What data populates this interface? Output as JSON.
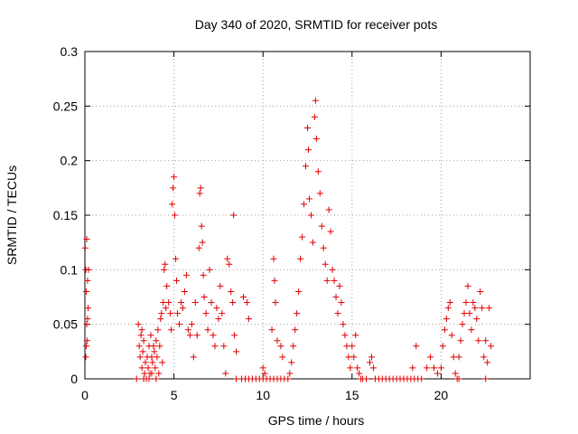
{
  "chart_data": {
    "type": "scatter",
    "title": "Day 340 of 2020, SRMTID for receiver pots",
    "xlabel": "GPS time / hours",
    "ylabel": "SRMTID / TECUs",
    "xlim": [
      0,
      25
    ],
    "ylim": [
      0,
      0.3
    ],
    "xticks": [
      0,
      5,
      10,
      15,
      20
    ],
    "yticks": [
      0,
      0.05,
      0.1,
      0.15,
      0.2,
      0.25,
      0.3
    ],
    "ytick_labels": [
      "0",
      "0.05",
      "0.1",
      "0.15",
      "0.2",
      "0.25",
      "0.3"
    ],
    "grid": true,
    "marker": "+",
    "marker_color": "#e00000",
    "series": [
      {
        "name": "SRMTID",
        "points": [
          [
            0.02,
            0.12
          ],
          [
            0.05,
            0.1
          ],
          [
            0.08,
            0.08
          ],
          [
            0.1,
            0.05
          ],
          [
            0.12,
            0.035
          ],
          [
            0.15,
            0.09
          ],
          [
            0.18,
            0.065
          ],
          [
            0.2,
            0.1
          ],
          [
            0.05,
            0.02
          ],
          [
            0.1,
            0.128
          ],
          [
            0.15,
            0.055
          ],
          [
            0.08,
            0.03
          ],
          [
            2.9,
            0.0
          ],
          [
            3.0,
            0.05
          ],
          [
            3.05,
            0.03
          ],
          [
            3.1,
            0.02
          ],
          [
            3.15,
            0.04
          ],
          [
            3.2,
            0.01
          ],
          [
            3.25,
            0.025
          ],
          [
            3.3,
            0.035
          ],
          [
            3.35,
            0.005
          ],
          [
            3.4,
            0.015
          ],
          [
            3.5,
            0.02
          ],
          [
            3.55,
            0.01
          ],
          [
            3.6,
            0.03
          ],
          [
            3.65,
            0.005
          ],
          [
            3.7,
            0.04
          ],
          [
            3.75,
            0.02
          ],
          [
            3.8,
            0.015
          ],
          [
            3.85,
            0.03
          ],
          [
            3.9,
            0.025
          ],
          [
            3.95,
            0.01
          ],
          [
            4.0,
            0.035
          ],
          [
            4.05,
            0.02
          ],
          [
            4.1,
            0.045
          ],
          [
            4.15,
            0.005
          ],
          [
            4.2,
            0.03
          ],
          [
            4.25,
            0.055
          ],
          [
            4.3,
            0.06
          ],
          [
            4.35,
            0.015
          ],
          [
            4.4,
            0.07
          ],
          [
            4.45,
            0.1
          ],
          [
            4.5,
            0.105
          ],
          [
            4.55,
            0.065
          ],
          [
            4.6,
            0.085
          ],
          [
            4.7,
            0.07
          ],
          [
            4.8,
            0.06
          ],
          [
            4.85,
            0.045
          ],
          [
            4.9,
            0.16
          ],
          [
            4.95,
            0.175
          ],
          [
            5.0,
            0.185
          ],
          [
            5.05,
            0.15
          ],
          [
            5.1,
            0.11
          ],
          [
            5.15,
            0.09
          ],
          [
            5.2,
            0.06
          ],
          [
            5.3,
            0.05
          ],
          [
            5.4,
            0.07
          ],
          [
            5.5,
            0.065
          ],
          [
            5.6,
            0.08
          ],
          [
            5.7,
            0.095
          ],
          [
            5.8,
            0.045
          ],
          [
            5.9,
            0.04
          ],
          [
            3.3,
            0.0
          ],
          [
            3.6,
            0.0
          ],
          [
            4.0,
            0.0
          ],
          [
            3.2,
            0.045
          ],
          [
            3.45,
            0.0
          ],
          [
            3.75,
            0.005
          ],
          [
            6.0,
            0.05
          ],
          [
            6.1,
            0.02
          ],
          [
            6.2,
            0.07
          ],
          [
            6.3,
            0.04
          ],
          [
            6.4,
            0.12
          ],
          [
            6.45,
            0.17
          ],
          [
            6.5,
            0.175
          ],
          [
            6.55,
            0.14
          ],
          [
            6.6,
            0.125
          ],
          [
            6.65,
            0.095
          ],
          [
            6.7,
            0.075
          ],
          [
            6.8,
            0.06
          ],
          [
            6.9,
            0.045
          ],
          [
            7.0,
            0.1
          ],
          [
            7.1,
            0.07
          ],
          [
            7.2,
            0.04
          ],
          [
            7.3,
            0.03
          ],
          [
            7.4,
            0.065
          ],
          [
            7.5,
            0.055
          ],
          [
            7.6,
            0.085
          ],
          [
            7.7,
            0.06
          ],
          [
            7.8,
            0.03
          ],
          [
            7.9,
            0.005
          ],
          [
            8.0,
            0.11
          ],
          [
            8.1,
            0.105
          ],
          [
            8.2,
            0.08
          ],
          [
            8.3,
            0.07
          ],
          [
            8.35,
            0.15
          ],
          [
            8.4,
            0.04
          ],
          [
            8.5,
            0.025
          ],
          [
            8.5,
            0.0
          ],
          [
            8.8,
            0.0
          ],
          [
            9.0,
            0.0
          ],
          [
            9.2,
            0.0
          ],
          [
            9.4,
            0.0
          ],
          [
            9.6,
            0.0
          ],
          [
            9.8,
            0.0
          ],
          [
            10.0,
            0.0
          ],
          [
            10.2,
            0.0
          ],
          [
            10.4,
            0.0
          ],
          [
            10.6,
            0.0
          ],
          [
            10.8,
            0.0
          ],
          [
            11.0,
            0.0
          ],
          [
            11.2,
            0.0
          ],
          [
            11.4,
            0.0
          ],
          [
            8.9,
            0.075
          ],
          [
            9.1,
            0.07
          ],
          [
            9.2,
            0.055
          ],
          [
            10.0,
            0.01
          ],
          [
            10.1,
            0.005
          ],
          [
            10.5,
            0.045
          ],
          [
            10.6,
            0.11
          ],
          [
            10.65,
            0.09
          ],
          [
            10.7,
            0.07
          ],
          [
            10.8,
            0.035
          ],
          [
            11.0,
            0.03
          ],
          [
            11.1,
            0.02
          ],
          [
            11.5,
            0.005
          ],
          [
            11.6,
            0.015
          ],
          [
            11.7,
            0.03
          ],
          [
            11.8,
            0.045
          ],
          [
            11.9,
            0.06
          ],
          [
            12.0,
            0.08
          ],
          [
            12.1,
            0.11
          ],
          [
            12.2,
            0.13
          ],
          [
            12.3,
            0.16
          ],
          [
            12.4,
            0.195
          ],
          [
            12.5,
            0.23
          ],
          [
            12.55,
            0.21
          ],
          [
            12.6,
            0.165
          ],
          [
            12.7,
            0.15
          ],
          [
            12.8,
            0.125
          ],
          [
            12.9,
            0.24
          ],
          [
            12.95,
            0.255
          ],
          [
            13.0,
            0.22
          ],
          [
            13.1,
            0.19
          ],
          [
            13.2,
            0.17
          ],
          [
            13.3,
            0.14
          ],
          [
            13.4,
            0.12
          ],
          [
            13.5,
            0.105
          ],
          [
            13.6,
            0.09
          ],
          [
            13.7,
            0.155
          ],
          [
            13.8,
            0.135
          ],
          [
            13.9,
            0.1
          ],
          [
            14.0,
            0.09
          ],
          [
            14.1,
            0.075
          ],
          [
            14.2,
            0.06
          ],
          [
            14.3,
            0.085
          ],
          [
            14.4,
            0.07
          ],
          [
            14.5,
            0.05
          ],
          [
            14.6,
            0.04
          ],
          [
            14.7,
            0.03
          ],
          [
            14.8,
            0.02
          ],
          [
            14.9,
            0.01
          ],
          [
            15.0,
            0.03
          ],
          [
            15.1,
            0.02
          ],
          [
            15.2,
            0.04
          ],
          [
            15.3,
            0.01
          ],
          [
            15.4,
            0.005
          ],
          [
            15.5,
            0.0
          ],
          [
            15.6,
            0.0
          ],
          [
            15.8,
            0.0
          ],
          [
            16.0,
            0.015
          ],
          [
            16.1,
            0.02
          ],
          [
            16.2,
            0.01
          ],
          [
            16.3,
            0.0
          ],
          [
            16.5,
            0.0
          ],
          [
            16.7,
            0.0
          ],
          [
            16.9,
            0.0
          ],
          [
            17.1,
            0.0
          ],
          [
            17.3,
            0.0
          ],
          [
            17.5,
            0.0
          ],
          [
            17.7,
            0.0
          ],
          [
            17.9,
            0.0
          ],
          [
            18.1,
            0.0
          ],
          [
            18.3,
            0.0
          ],
          [
            18.5,
            0.0
          ],
          [
            18.7,
            0.0
          ],
          [
            18.9,
            0.0
          ],
          [
            18.4,
            0.01
          ],
          [
            18.6,
            0.03
          ],
          [
            19.2,
            0.01
          ],
          [
            19.4,
            0.02
          ],
          [
            19.6,
            0.01
          ],
          [
            19.8,
            0.005
          ],
          [
            20.0,
            0.01
          ],
          [
            20.1,
            0.03
          ],
          [
            20.2,
            0.045
          ],
          [
            20.3,
            0.055
          ],
          [
            20.4,
            0.065
          ],
          [
            20.5,
            0.07
          ],
          [
            20.6,
            0.04
          ],
          [
            20.7,
            0.02
          ],
          [
            20.8,
            0.005
          ],
          [
            20.9,
            0.0
          ],
          [
            21.0,
            0.02
          ],
          [
            21.1,
            0.035
          ],
          [
            21.2,
            0.05
          ],
          [
            21.3,
            0.06
          ],
          [
            21.4,
            0.07
          ],
          [
            21.5,
            0.085
          ],
          [
            21.6,
            0.06
          ],
          [
            21.7,
            0.045
          ],
          [
            21.8,
            0.07
          ],
          [
            21.9,
            0.065
          ],
          [
            22.0,
            0.055
          ],
          [
            22.1,
            0.035
          ],
          [
            22.2,
            0.08
          ],
          [
            22.3,
            0.065
          ],
          [
            22.4,
            0.02
          ],
          [
            22.5,
            0.035
          ],
          [
            22.6,
            0.015
          ],
          [
            22.7,
            0.065
          ],
          [
            22.8,
            0.03
          ],
          [
            21.0,
            0.0
          ],
          [
            22.5,
            0.0
          ]
        ]
      }
    ]
  }
}
